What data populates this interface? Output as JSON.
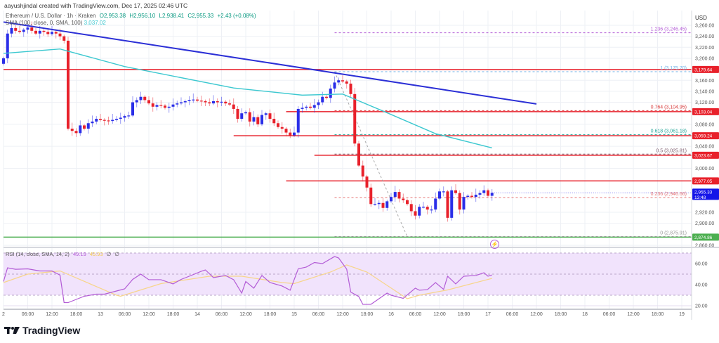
{
  "header": {
    "credit": "aayushjindal created with TradingView.com, Dec 17, 2025 02:46 UTC"
  },
  "legend": {
    "symbol": "Ethereum / U.S. Dollar · 1h · Kraken",
    "open": "O2,953.38",
    "high": "H2,956.10",
    "low": "L2,938.41",
    "close": "C2,955.33",
    "change": "+2.43 (+0.08%)",
    "sma_label": "SMA (100, close, 0, SMA, 100)",
    "sma_value": "3,037.02"
  },
  "rsi_legend": {
    "label": "RSI (14, close, SMA, 14, 2)",
    "rsi_value": "49.19",
    "sma_value": "45.93",
    "extra1": "∅",
    "extra2": "∅"
  },
  "price_axis": {
    "unit": "USD"
  },
  "logo": {
    "text": "TradingView"
  },
  "icons": {
    "alert": "lightning-icon",
    "logo": "tradingview-logo-icon"
  },
  "chart_data": {
    "type": "candlestick",
    "symbol": "ETH/USD",
    "interval": "1h",
    "start": "2025-12-12 00:00",
    "first_open": 3190,
    "closes": [
      3200,
      3245,
      3255,
      3250,
      3248,
      3252,
      3256,
      3250,
      3245,
      3250,
      3248,
      3244,
      3248,
      3245,
      3240,
      3232,
      3072,
      3068,
      3064,
      3078,
      3072,
      3082,
      3085,
      3090,
      3088,
      3087,
      3086,
      3088,
      3090,
      3092,
      3095,
      3096,
      3120,
      3124,
      3130,
      3124,
      3118,
      3112,
      3115,
      3114,
      3110,
      3112,
      3116,
      3118,
      3120,
      3122,
      3124,
      3125,
      3123,
      3122,
      3120,
      3118,
      3122,
      3120,
      3121,
      3118,
      3116,
      3108,
      3090,
      3100,
      3102,
      3085,
      3093,
      3080,
      3097,
      3100,
      3090,
      3082,
      3075,
      3072,
      3065,
      3060,
      3065,
      3108,
      3110,
      3112,
      3110,
      3115,
      3120,
      3130,
      3128,
      3145,
      3156,
      3160,
      3158,
      3154,
      3135,
      3045,
      3005,
      2985,
      2965,
      2935,
      2935,
      2937,
      2928,
      2940,
      2948,
      2957,
      2945,
      2942,
      2935,
      2922,
      2914,
      2930,
      2930,
      2925,
      2925,
      2945,
      2958,
      2958,
      2910,
      2960,
      2955,
      2925,
      2948,
      2950,
      2948,
      2952,
      2955,
      2960,
      2950,
      2955.33
    ],
    "colors": {
      "up": "#2a2ee8",
      "down": "#e8212b",
      "sma": "#3cc8d0",
      "trendline": "#2b2fd6",
      "rsi": "#b35cd6",
      "rsi_sma": "#f7d58a",
      "rsi_band": "#f1e3fc",
      "support": "#4caf50",
      "resistance": "#e8212b",
      "last_price": "#1515e8"
    },
    "y_range": [
      2850,
      3275
    ],
    "price_ticks": [
      "3,260.00",
      "3,240.00",
      "3,220.00",
      "3,200.00",
      "3,160.00",
      "3,140.00",
      "3,120.00",
      "3,080.00",
      "3,040.00",
      "3,000.00",
      "2,920.00",
      "2,900.00",
      "2,860.00"
    ],
    "price_tick_values": [
      3260,
      3240,
      3220,
      3200,
      3160,
      3140,
      3120,
      3080,
      3040,
      3000,
      2920,
      2900,
      2860
    ],
    "time_ticks": [
      "2",
      "06:00",
      "12:00",
      "18:00",
      "13",
      "06:00",
      "12:00",
      "18:00",
      "14",
      "06:00",
      "12:00",
      "18:00",
      "15",
      "06:00",
      "12:00",
      "18:00",
      "16",
      "06:00",
      "12:00",
      "18:00",
      "17",
      "06:00",
      "12:00",
      "18:00",
      "18",
      "06:00",
      "12:00",
      "18:00",
      "19"
    ],
    "time_tick_step_hours": 6,
    "sma100": [
      [
        "2025-12-12 00:00",
        3209
      ],
      [
        "2025-12-12 14:00",
        3217
      ],
      [
        "2025-12-13 06:00",
        3185
      ],
      [
        "2025-12-14 09:00",
        3146
      ],
      [
        "2025-12-15 02:00",
        3133
      ],
      [
        "2025-12-15 12:00",
        3135
      ],
      [
        "2025-12-15 23:00",
        3101
      ],
      [
        "2025-12-16 11:00",
        3063
      ],
      [
        "2025-12-17 01:00",
        3037.02
      ]
    ],
    "trendline": [
      [
        "2025-12-12 00:00",
        3266
      ],
      [
        "2025-12-17 12:00",
        3117
      ]
    ],
    "horizontal_levels": [
      {
        "price": 3179.64,
        "label": "3,179.64",
        "from": "2025-12-12 00:00",
        "color": "#e8212b"
      },
      {
        "price": 3103.04,
        "label": "3,103.04",
        "from": "2025-12-14 22:00",
        "color": "#e8212b"
      },
      {
        "price": 3059.24,
        "label": "3,059.24",
        "from": "2025-12-14 09:00",
        "color": "#e8212b"
      },
      {
        "price": 3023.67,
        "label": "3,023.67",
        "from": "2025-12-15 05:00",
        "color": "#e8212b"
      },
      {
        "price": 2977.05,
        "label": "2,977.05",
        "from": "2025-12-14 22:00",
        "color": "#e8212b"
      },
      {
        "price": 2874.86,
        "label": "2,874.86",
        "from": "2025-12-12 00:00",
        "color": "#4caf50"
      }
    ],
    "last_price": {
      "price": 2955.33,
      "label": "2,955.33",
      "countdown": "13:48"
    },
    "fib_from": "2025-12-15 10:00",
    "fib_levels": [
      {
        "price": 3246.45,
        "label": "1.236 (3,246.45)",
        "color": "#b35cd6"
      },
      {
        "price": 3175.7,
        "label": "1 (3,175.70)",
        "color": "#6fb3e8"
      },
      {
        "price": 3104.95,
        "label": "0.764 (3,104.95)",
        "color": "#d83a3a"
      },
      {
        "price": 3061.18,
        "label": "0.618 (3,061.18)",
        "color": "#26a69a"
      },
      {
        "price": 3025.81,
        "label": "0.5 (3,025.81)",
        "color": "#7a5a6a"
      },
      {
        "price": 2946.66,
        "label": "0.236 (2,946.66)",
        "color": "#e57373"
      },
      {
        "price": 2875.91,
        "label": "0 (2,875.91)",
        "color": "#999999"
      }
    ],
    "fib_trend": [
      [
        "2025-12-15 10:00",
        3175.7
      ],
      [
        "2025-12-16 04:00",
        2875.91
      ]
    ],
    "rsi": {
      "levels": [
        70,
        50,
        30
      ],
      "ticks": [
        "60.00",
        "40.00",
        "20.00"
      ],
      "tick_values": [
        60,
        40,
        20
      ],
      "values": [
        [
          "2025-12-12 00:00",
          43
        ],
        [
          "2025-12-12 01:00",
          56
        ],
        [
          "2025-12-12 03:00",
          54.6
        ],
        [
          "2025-12-12 06:00",
          55
        ],
        [
          "2025-12-12 09:00",
          53
        ],
        [
          "2025-12-12 12:00",
          53
        ],
        [
          "2025-12-12 14:00",
          49
        ],
        [
          "2025-12-12 15:00",
          23
        ],
        [
          "2025-12-12 16:00",
          23
        ],
        [
          "2025-12-12 18:00",
          26
        ],
        [
          "2025-12-12 20:00",
          29
        ],
        [
          "2025-12-12 23:00",
          31
        ],
        [
          "2025-12-13 01:00",
          31
        ],
        [
          "2025-12-13 04:00",
          34
        ],
        [
          "2025-12-13 06:00",
          36
        ],
        [
          "2025-12-13 08:00",
          45
        ],
        [
          "2025-12-13 10:00",
          50
        ],
        [
          "2025-12-13 12:00",
          44.7
        ],
        [
          "2025-12-13 15:00",
          44.7
        ],
        [
          "2025-12-13 18:00",
          40.7
        ],
        [
          "2025-12-13 20:00",
          45
        ],
        [
          "2025-12-13 22:00",
          48
        ],
        [
          "2025-12-14 01:00",
          52.7
        ],
        [
          "2025-12-14 02:00",
          54
        ],
        [
          "2025-12-14 04:00",
          46.7
        ],
        [
          "2025-12-14 07:00",
          48.7
        ],
        [
          "2025-12-14 09:00",
          44.7
        ],
        [
          "2025-12-14 11:00",
          32
        ],
        [
          "2025-12-14 12:00",
          43
        ],
        [
          "2025-12-14 14:00",
          36.7
        ],
        [
          "2025-12-14 16:00",
          48.7
        ],
        [
          "2025-12-14 18:00",
          42
        ],
        [
          "2025-12-14 21:00",
          38.7
        ],
        [
          "2025-12-14 23:00",
          34.7
        ],
        [
          "2025-12-15 01:00",
          55
        ],
        [
          "2025-12-15 03:00",
          56.7
        ],
        [
          "2025-12-15 05:00",
          61
        ],
        [
          "2025-12-15 07:00",
          60
        ],
        [
          "2025-12-15 10:00",
          66.7
        ],
        [
          "2025-12-15 11:00",
          65.3
        ],
        [
          "2025-12-15 13:00",
          54.7
        ],
        [
          "2025-12-15 14:00",
          33
        ],
        [
          "2025-12-15 16:00",
          28.7
        ],
        [
          "2025-12-15 17:00",
          21.3
        ],
        [
          "2025-12-15 19:00",
          21.3
        ],
        [
          "2025-12-15 21:00",
          26.7
        ],
        [
          "2025-12-15 23:00",
          32
        ],
        [
          "2025-12-16 00:00",
          30
        ],
        [
          "2025-12-16 03:00",
          27
        ],
        [
          "2025-12-16 06:00",
          36.7
        ],
        [
          "2025-12-16 07:00",
          34.7
        ],
        [
          "2025-12-16 09:00",
          35.3
        ],
        [
          "2025-12-16 11:00",
          42
        ],
        [
          "2025-12-16 13:00",
          35.5
        ],
        [
          "2025-12-16 14:00",
          48
        ],
        [
          "2025-12-16 16:00",
          40.7
        ],
        [
          "2025-12-16 18:00",
          48
        ],
        [
          "2025-12-16 21:00",
          48.7
        ],
        [
          "2025-12-16 23:00",
          51.3
        ],
        [
          "2025-12-17 00:00",
          48
        ],
        [
          "2025-12-17 01:00",
          49.19
        ]
      ],
      "sma": [
        [
          "2025-12-12 00:00",
          42
        ],
        [
          "2025-12-12 06:00",
          50
        ],
        [
          "2025-12-12 14:00",
          53
        ],
        [
          "2025-12-13 04:00",
          30
        ],
        [
          "2025-12-13 05:00",
          29
        ],
        [
          "2025-12-13 15:00",
          41
        ],
        [
          "2025-12-14 03:00",
          48
        ],
        [
          "2025-12-14 11:00",
          48
        ],
        [
          "2025-12-14 21:00",
          42
        ],
        [
          "2025-12-15 00:00",
          41
        ],
        [
          "2025-12-15 09:00",
          52
        ],
        [
          "2025-12-15 13:00",
          58.7
        ],
        [
          "2025-12-15 18:00",
          52
        ],
        [
          "2025-12-16 04:00",
          26.7
        ],
        [
          "2025-12-16 07:00",
          30
        ],
        [
          "2025-12-16 14:00",
          35
        ],
        [
          "2025-12-17 01:00",
          45.93
        ]
      ]
    }
  }
}
